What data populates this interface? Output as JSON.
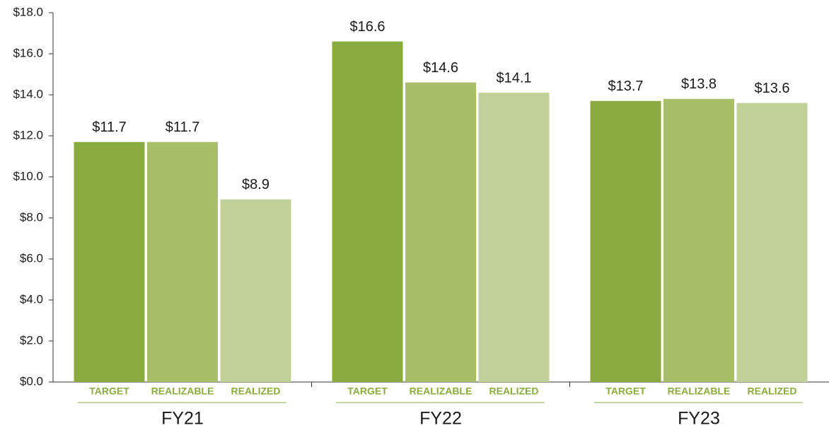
{
  "chart_data": {
    "type": "bar",
    "categories": [
      "FY21",
      "FY22",
      "FY23"
    ],
    "series": [
      {
        "name": "TARGET",
        "color": "#8aab3f",
        "values": [
          11.7,
          16.6,
          13.7
        ],
        "value_labels": [
          "$11.7",
          "$16.6",
          "$13.7"
        ]
      },
      {
        "name": "REALIZABLE",
        "color": "#a8bf6a",
        "values": [
          11.7,
          14.6,
          13.8
        ],
        "value_labels": [
          "$11.7",
          "$14.6",
          "$13.8"
        ]
      },
      {
        "name": "REALIZED",
        "color": "#c2d197",
        "values": [
          8.9,
          14.1,
          13.6
        ],
        "value_labels": [
          "$8.9",
          "$14.1",
          "$13.6"
        ]
      }
    ],
    "ylim": [
      0,
      18
    ],
    "yticks": [
      {
        "value": 0,
        "label": "$0.0"
      },
      {
        "value": 2,
        "label": "$2.0"
      },
      {
        "value": 4,
        "label": "$4.0"
      },
      {
        "value": 6,
        "label": "$6.0"
      },
      {
        "value": 8,
        "label": "$8.0"
      },
      {
        "value": 10,
        "label": "$10.0"
      },
      {
        "value": 12,
        "label": "$12.0"
      },
      {
        "value": 14,
        "label": "$14.0"
      },
      {
        "value": 16,
        "label": "$16.0"
      },
      {
        "value": 18,
        "label": "$18.0"
      }
    ],
    "grid": false
  }
}
